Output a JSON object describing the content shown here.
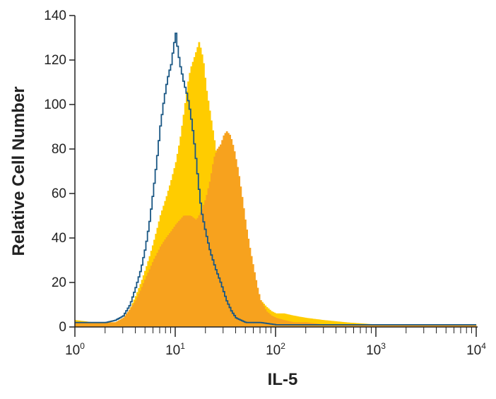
{
  "chart_data": {
    "type": "area",
    "title": "",
    "xlabel": "IL-5",
    "ylabel": "Relative Cell Number",
    "x_scale": "log",
    "xlim": [
      1,
      10000
    ],
    "ylim": [
      0,
      140
    ],
    "grid": false,
    "legend": "none",
    "x_ticks": [
      {
        "base": "10",
        "exp": "0"
      },
      {
        "base": "10",
        "exp": "1"
      },
      {
        "base": "10",
        "exp": "2"
      },
      {
        "base": "10",
        "exp": "3"
      },
      {
        "base": "10",
        "exp": "4"
      }
    ],
    "y_ticks": [
      "0",
      "20",
      "40",
      "60",
      "80",
      "100",
      "120",
      "140"
    ],
    "series": [
      {
        "style": "filled",
        "color": "#FFCC00",
        "points": [
          [
            1,
            3
          ],
          [
            1.5,
            2
          ],
          [
            2,
            2
          ],
          [
            2.5,
            2
          ],
          [
            3,
            4
          ],
          [
            3.5,
            8
          ],
          [
            4,
            14
          ],
          [
            4.5,
            20
          ],
          [
            5,
            26
          ],
          [
            5.5,
            32
          ],
          [
            6,
            38
          ],
          [
            6.5,
            44
          ],
          [
            7,
            50
          ],
          [
            8,
            58
          ],
          [
            9,
            66
          ],
          [
            10,
            74
          ],
          [
            11,
            84
          ],
          [
            12,
            96
          ],
          [
            13,
            108
          ],
          [
            14,
            116
          ],
          [
            15,
            120
          ],
          [
            16,
            124
          ],
          [
            17,
            128
          ],
          [
            18,
            124
          ],
          [
            19,
            118
          ],
          [
            20,
            108
          ],
          [
            22,
            96
          ],
          [
            25,
            80
          ],
          [
            28,
            62
          ],
          [
            32,
            52
          ],
          [
            36,
            46
          ],
          [
            40,
            40
          ],
          [
            45,
            32
          ],
          [
            50,
            26
          ],
          [
            55,
            20
          ],
          [
            60,
            16
          ],
          [
            70,
            12
          ],
          [
            80,
            9
          ],
          [
            90,
            7
          ],
          [
            100,
            6
          ],
          [
            120,
            6
          ],
          [
            150,
            5
          ],
          [
            200,
            4
          ],
          [
            300,
            3
          ],
          [
            500,
            2
          ],
          [
            1000,
            1
          ],
          [
            10000,
            1
          ]
        ]
      },
      {
        "style": "filled",
        "color": "#F7A21E",
        "points": [
          [
            1,
            2
          ],
          [
            1.5,
            2
          ],
          [
            2,
            2
          ],
          [
            2.5,
            2
          ],
          [
            3,
            4
          ],
          [
            3.5,
            8
          ],
          [
            4,
            12
          ],
          [
            4.5,
            17
          ],
          [
            5,
            22
          ],
          [
            5.5,
            26
          ],
          [
            6,
            30
          ],
          [
            6.5,
            33
          ],
          [
            7,
            36
          ],
          [
            8,
            40
          ],
          [
            9,
            43
          ],
          [
            10,
            46
          ],
          [
            12,
            50
          ],
          [
            14,
            50
          ],
          [
            16,
            48
          ],
          [
            18,
            52
          ],
          [
            20,
            58
          ],
          [
            22,
            66
          ],
          [
            24,
            76
          ],
          [
            26,
            80
          ],
          [
            28,
            82
          ],
          [
            30,
            86
          ],
          [
            32,
            88
          ],
          [
            35,
            86
          ],
          [
            38,
            80
          ],
          [
            42,
            70
          ],
          [
            46,
            58
          ],
          [
            50,
            46
          ],
          [
            55,
            35
          ],
          [
            60,
            26
          ],
          [
            65,
            18
          ],
          [
            70,
            12
          ],
          [
            80,
            7
          ],
          [
            90,
            5
          ],
          [
            100,
            4
          ],
          [
            120,
            3
          ],
          [
            150,
            2
          ],
          [
            200,
            2
          ],
          [
            300,
            1
          ],
          [
            500,
            1
          ],
          [
            10000,
            1
          ]
        ]
      },
      {
        "style": "line",
        "color": "#1A5784",
        "points": [
          [
            1,
            2
          ],
          [
            1.5,
            2
          ],
          [
            2,
            2
          ],
          [
            2.5,
            3
          ],
          [
            3,
            5
          ],
          [
            3.5,
            10
          ],
          [
            4,
            18
          ],
          [
            4.5,
            26
          ],
          [
            5,
            36
          ],
          [
            5.5,
            48
          ],
          [
            6,
            62
          ],
          [
            6.5,
            76
          ],
          [
            7,
            90
          ],
          [
            7.5,
            100
          ],
          [
            8,
            108
          ],
          [
            8.5,
            114
          ],
          [
            9,
            118
          ],
          [
            9.5,
            126
          ],
          [
            10,
            132
          ],
          [
            10.5,
            124
          ],
          [
            11,
            118
          ],
          [
            12,
            110
          ],
          [
            13,
            104
          ],
          [
            14,
            96
          ],
          [
            15,
            86
          ],
          [
            16,
            74
          ],
          [
            17,
            62
          ],
          [
            18,
            52
          ],
          [
            20,
            42
          ],
          [
            22,
            34
          ],
          [
            25,
            26
          ],
          [
            28,
            20
          ],
          [
            32,
            12
          ],
          [
            36,
            7
          ],
          [
            40,
            4
          ],
          [
            50,
            2
          ],
          [
            70,
            2
          ],
          [
            100,
            1
          ],
          [
            10000,
            1
          ]
        ]
      }
    ]
  }
}
